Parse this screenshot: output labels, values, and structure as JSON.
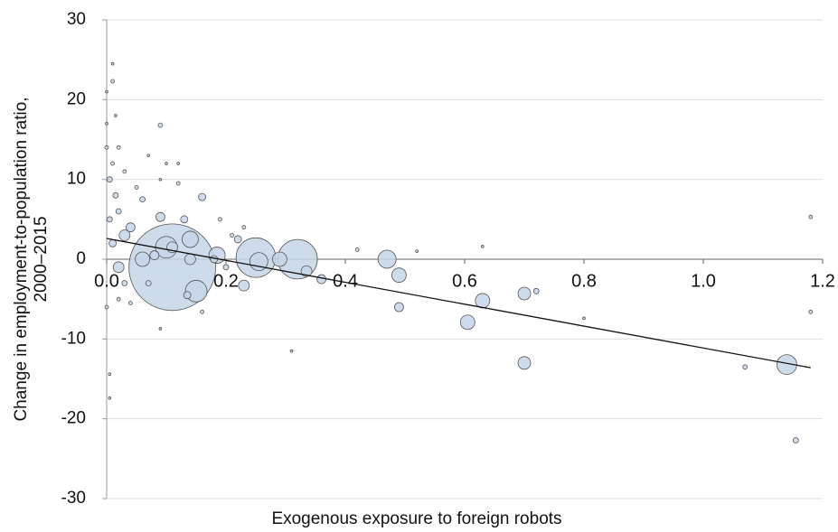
{
  "chart_data": {
    "type": "bubble",
    "xlabel": "Exogenous exposure to foreign robots",
    "ylabel": [
      "Change in employment-to-population ratio,",
      "2000–2015"
    ],
    "xlim": [
      0,
      1.2
    ],
    "ylim": [
      -30,
      30
    ],
    "xticks": [
      {
        "value": 0,
        "label": "0.0"
      },
      0.2,
      0.4,
      0.6,
      0.8,
      {
        "value": 1,
        "label": "1.0"
      },
      1.2
    ],
    "yticks": [
      30,
      20,
      10,
      0,
      -10,
      -20,
      -30
    ],
    "grid": true,
    "color": "#c5d5e8",
    "edge_color": "#555555",
    "line_color": "#111111",
    "x": [
      0.11,
      0.25,
      0.32,
      0.1,
      0.14,
      0.15,
      0.185,
      0.23,
      0.255,
      0.29,
      0.335,
      0.36,
      0.47,
      0.49,
      0.49,
      0.605,
      0.63,
      0.7,
      0.7,
      0.72,
      1.14,
      1.155,
      1.18,
      1.18,
      1.07,
      0.8,
      0.63,
      0.42,
      0.52,
      0.31,
      0.21,
      0.22,
      0.23,
      0.19,
      0.16,
      0.13,
      0.09,
      0.1,
      0.12,
      0.09,
      0.06,
      0.05,
      0.04,
      0.06,
      0.02,
      0.03,
      0.0,
      0.01,
      0.01,
      0.0,
      0.015,
      0.005,
      0.005,
      0.0,
      0.02,
      0.005,
      0.01,
      0.015,
      0.02,
      0.01,
      0.03,
      0.04,
      0.07,
      0.08,
      0.11,
      0.14,
      0.135,
      0.09,
      0.16,
      0.0,
      0.005,
      0.02,
      0.03,
      0.07,
      0.09,
      0.18,
      0.2,
      0.12
    ],
    "values": [
      -1,
      0.2,
      0,
      1.5,
      2.5,
      -4,
      0.5,
      -3.3,
      -0.3,
      0,
      -1.5,
      -2.5,
      0,
      -2,
      -6,
      -7.9,
      -5.2,
      -13,
      -4.3,
      -4,
      -13.2,
      -22.7,
      5.3,
      -6.6,
      -13.5,
      -7.4,
      1.6,
      1.2,
      1,
      -11.5,
      3,
      2.5,
      4,
      5,
      7.8,
      5,
      16.8,
      12,
      12,
      5.3,
      7.5,
      9,
      4,
      0,
      -1,
      3,
      21,
      24.5,
      22.3,
      17,
      18,
      -14.4,
      -17.4,
      -6,
      -5,
      10,
      12,
      8,
      6,
      2,
      -3,
      -5.5,
      -3,
      0.5,
      1.5,
      0,
      -4.5,
      -8.7,
      -6.6,
      14,
      5,
      14,
      11,
      13,
      10,
      0,
      -1,
      9.5
    ],
    "sizes": [
      2300,
      480,
      480,
      144,
      81,
      144,
      81,
      36,
      100,
      64,
      36,
      25,
      100,
      64,
      25,
      64,
      64,
      49,
      49,
      9,
      121,
      9,
      4,
      4,
      6,
      2,
      2,
      4,
      2,
      2,
      4,
      16,
      4,
      4,
      16,
      16,
      6,
      2,
      2,
      25,
      9,
      4,
      25,
      64,
      36,
      36,
      2,
      2,
      4,
      2,
      2,
      2,
      2,
      4,
      4,
      9,
      4,
      9,
      9,
      16,
      9,
      4,
      9,
      25,
      36,
      36,
      16,
      2,
      4,
      4,
      9,
      4,
      4,
      2,
      2,
      16,
      9,
      4
    ],
    "fit_line": {
      "x": [
        0,
        1.18
      ],
      "y": [
        2.6,
        -13.6
      ]
    }
  }
}
